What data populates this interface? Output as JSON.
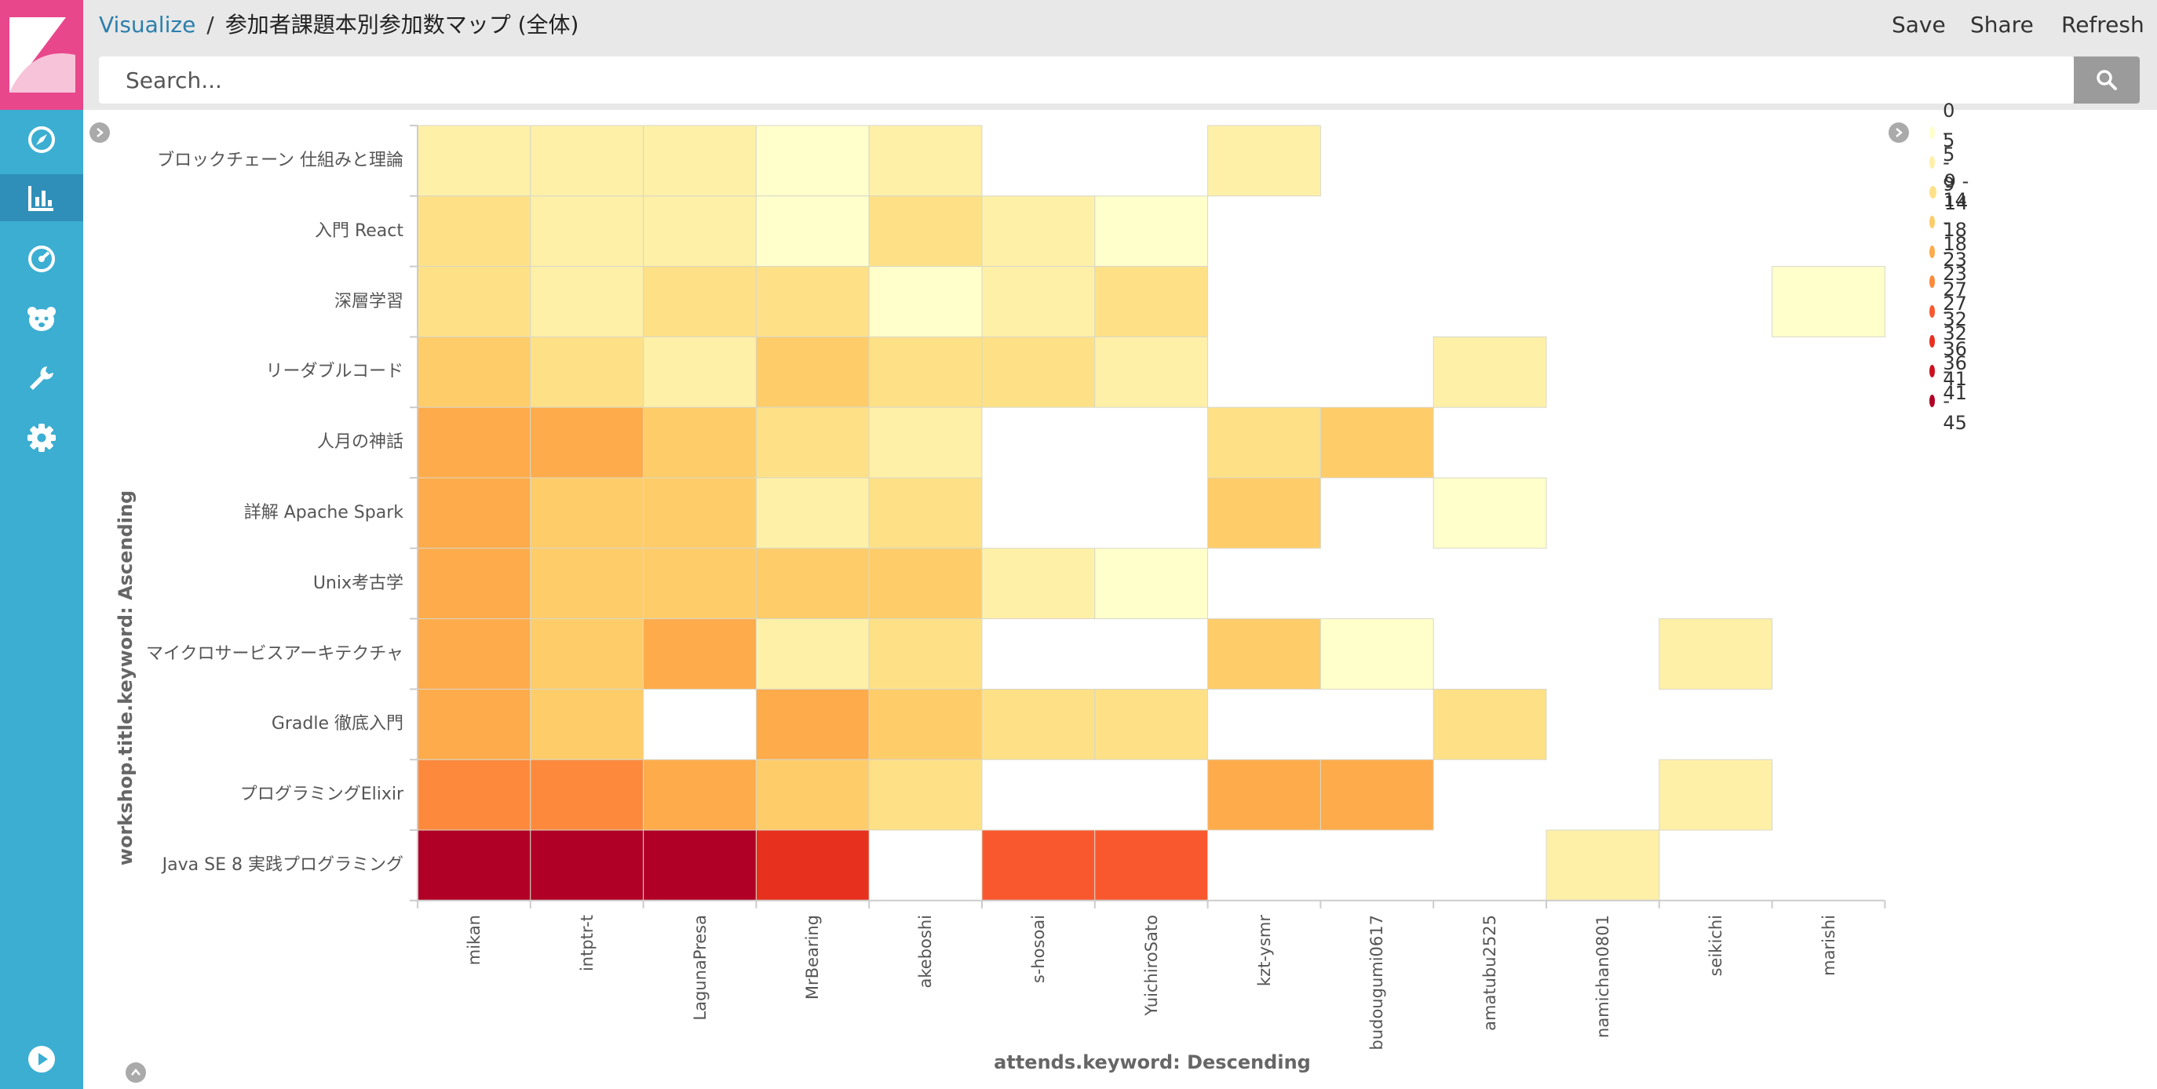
{
  "breadcrumb": {
    "app": "Visualize",
    "separator": "/",
    "title": "参加者課題本別参加数マップ (全体)"
  },
  "top_actions": {
    "save": "Save",
    "share": "Share",
    "refresh": "Refresh"
  },
  "search": {
    "placeholder": "Search..."
  },
  "sidebar": {
    "items": [
      {
        "name": "discover",
        "icon": "compass-icon"
      },
      {
        "name": "visualize",
        "icon": "bar-chart-icon",
        "active": true
      },
      {
        "name": "dashboard",
        "icon": "dashboard-icon"
      },
      {
        "name": "timelion",
        "icon": "bear-icon"
      },
      {
        "name": "dev-tools",
        "icon": "wrench-icon"
      },
      {
        "name": "management",
        "icon": "gear-icon"
      },
      {
        "name": "collapse",
        "icon": "play-icon"
      }
    ]
  },
  "chart_data": {
    "type": "heatmap",
    "xlabel": "attends.keyword: Descending",
    "ylabel": "workshop.title.keyword: Ascending",
    "categories_x": [
      "mikan",
      "intptr-t",
      "LagunaPresa",
      "MrBearing",
      "akeboshi",
      "s-hosoai",
      "YuichiroSato",
      "kzt-ysmr",
      "budougumi0617",
      "amatubu2525",
      "namichan0801",
      "seikichi",
      "marishi"
    ],
    "categories_y": [
      "ブロックチェーン 仕組みと理論",
      "入門 React",
      "深層学習",
      "リーダブルコード",
      "人月の神話",
      "詳解 Apache Spark",
      "Unix考古学",
      "マイクロサービスアーキテクチャ",
      "Gradle 徹底入門",
      "プログラミングElixir",
      "Java SE 8 実践プログラミング"
    ],
    "values": [
      [
        7,
        7,
        7,
        3,
        7,
        null,
        null,
        7,
        null,
        null,
        null,
        null,
        null
      ],
      [
        11,
        7,
        7,
        3,
        12,
        6,
        3,
        null,
        null,
        null,
        null,
        null,
        null
      ],
      [
        11,
        6,
        12,
        12,
        2,
        6,
        12,
        null,
        null,
        null,
        null,
        null,
        3
      ],
      [
        15,
        11,
        7,
        16,
        11,
        11,
        7,
        null,
        null,
        7,
        null,
        null,
        null
      ],
      [
        20,
        20,
        16,
        10,
        7,
        null,
        null,
        12,
        16,
        null,
        null,
        null,
        null
      ],
      [
        20,
        16,
        16,
        7,
        11,
        null,
        null,
        16,
        null,
        3,
        null,
        null,
        null
      ],
      [
        20,
        16,
        16,
        16,
        16,
        6,
        3,
        null,
        null,
        null,
        null,
        null,
        null
      ],
      [
        20,
        16,
        20,
        7,
        11,
        null,
        null,
        16,
        3,
        null,
        null,
        7,
        null
      ],
      [
        20,
        16,
        null,
        20,
        16,
        12,
        12,
        null,
        null,
        12,
        null,
        null,
        null
      ],
      [
        24,
        24,
        20,
        16,
        11,
        null,
        null,
        20,
        20,
        null,
        null,
        7,
        null
      ],
      [
        43,
        43,
        43,
        34,
        null,
        30,
        30,
        null,
        null,
        null,
        7,
        null,
        null
      ]
    ],
    "legend": {
      "placement": "top-right",
      "ranges": [
        {
          "label": "0 - 5",
          "color": "#ffffcc"
        },
        {
          "label": "5 - 9",
          "color": "#fff0a8"
        },
        {
          "label": "9 - 14",
          "color": "#fee187"
        },
        {
          "label": "14 - 18",
          "color": "#fecc69"
        },
        {
          "label": "18 - 23",
          "color": "#feab4b"
        },
        {
          "label": "23 - 27",
          "color": "#fd8a3c"
        },
        {
          "label": "27 - 32",
          "color": "#f9582f"
        },
        {
          "label": "32 - 36",
          "color": "#e8301f"
        },
        {
          "label": "36 - 41",
          "color": "#cd1020"
        },
        {
          "label": "41 - 45",
          "color": "#b00026"
        }
      ]
    }
  }
}
